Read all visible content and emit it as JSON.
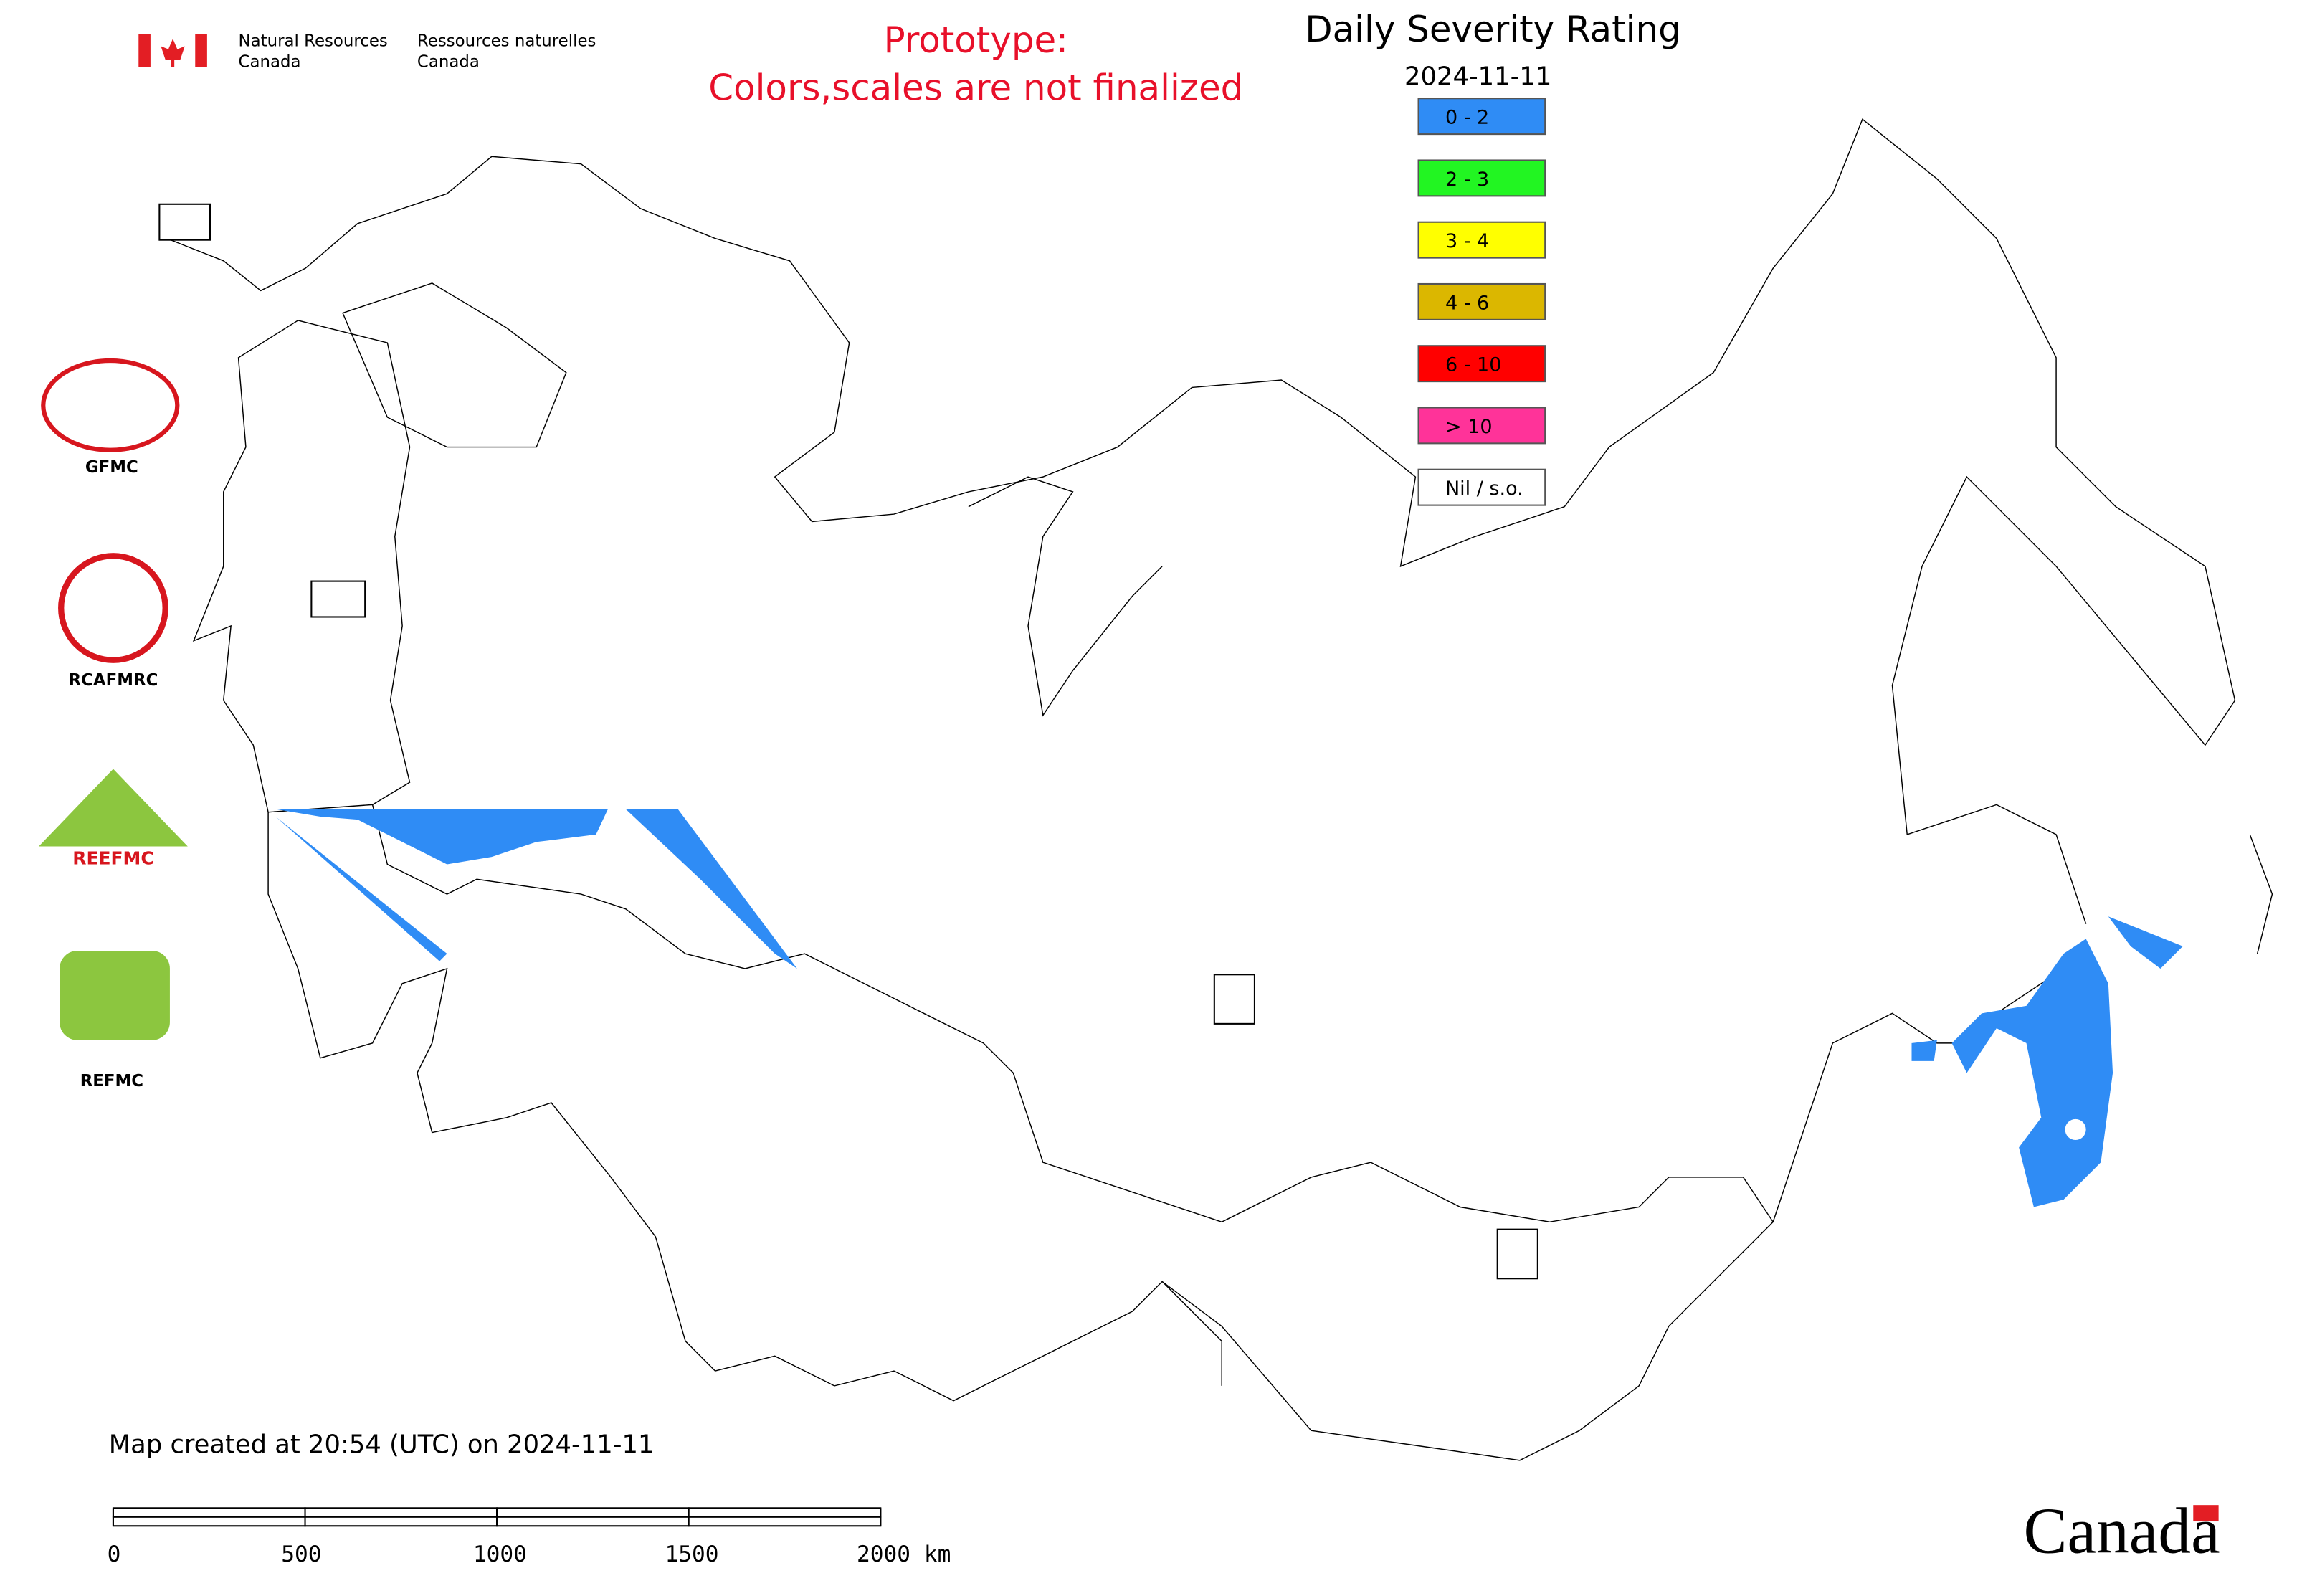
{
  "header": {
    "agency_en": "Natural Resources",
    "agency_en_2": "Canada",
    "agency_fr": "Ressources naturelles",
    "agency_fr_2": "Canada"
  },
  "notice": {
    "line1": "Prototype:",
    "line2": "Colors,scales are not finalized"
  },
  "title": "Daily Severity Rating",
  "date": "2024-11-11",
  "legend": [
    {
      "label": "0 - 2",
      "color": "#2f8cf5"
    },
    {
      "label": "2 - 3",
      "color": "#22f522"
    },
    {
      "label": "3 - 4",
      "color": "#ffff00"
    },
    {
      "label": "4 - 6",
      "color": "#dbb700"
    },
    {
      "label": "6 - 10",
      "color": "#ff0000"
    },
    {
      "label": "> 10",
      "color": "#ff3399"
    },
    {
      "label": "Nil / s.o.",
      "color": "#ffffff"
    }
  ],
  "logos": [
    "GFMC",
    "RCAFMRC",
    "REEFMC",
    "REFMC"
  ],
  "footer": "Map created at 20:54 (UTC) on 2024-11-11",
  "scale_bar": {
    "ticks": [
      0,
      500,
      1000,
      1500,
      {
        "value": 2000,
        "label": "2000 km"
      }
    ],
    "range": [
      0,
      2000
    ]
  },
  "wordmark": "Canada"
}
